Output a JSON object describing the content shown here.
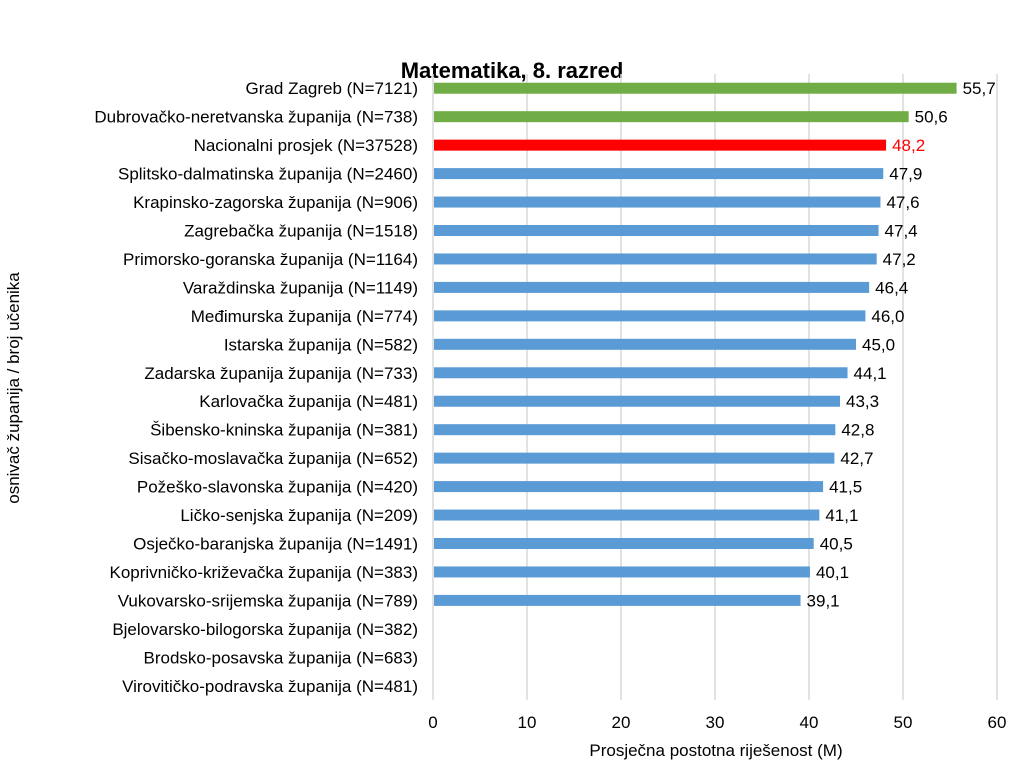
{
  "chart_data": {
    "type": "bar",
    "orientation": "horizontal",
    "title": "Matematika, 8. razred",
    "xlabel": "Prosječna postotna riješenost (M)",
    "ylabel": "osnivač županija / broj učenika",
    "xlim": [
      0,
      60
    ],
    "xticks": [
      0,
      10,
      20,
      30,
      40,
      50,
      60
    ],
    "xtick_labels": [
      "0",
      "10",
      "20",
      "30",
      "40",
      "50",
      "60"
    ],
    "grid": "vertical",
    "colors": {
      "highlight": "#70ad47",
      "national": "#ff0000",
      "default": "#5b9bd5"
    },
    "categories": [
      "Grad Zagreb (N=7121)",
      "Dubrovačko-neretvanska županija (N=738)",
      "Nacionalni prosjek (N=37528)",
      "Splitsko-dalmatinska županija (N=2460)",
      "Krapinsko-zagorska županija (N=906)",
      "Zagrebačka županija (N=1518)",
      "Primorsko-goranska županija (N=1164)",
      "Varaždinska županija (N=1149)",
      "Međimurska županija (N=774)",
      "Istarska županija (N=582)",
      "Zadarska županija županija (N=733)",
      "Karlovačka županija (N=481)",
      "Šibensko-kninska županija (N=381)",
      "Sisačko-moslavačka županija (N=652)",
      "Požeško-slavonska županija (N=420)",
      "Ličko-senjska županija (N=209)",
      "Osječko-baranjska županija (N=1491)",
      "Koprivničko-križevačka županija (N=383)",
      "Vukovarsko-srijemska županija (N=789)",
      "Bjelovarsko-bilogorska županija (N=382)",
      "Brodsko-posavska županija (N=683)",
      "Virovitičko-podravska županija (N=481)"
    ],
    "values": [
      55.7,
      50.6,
      48.2,
      47.9,
      47.6,
      47.4,
      47.2,
      46.4,
      46.0,
      45.0,
      44.1,
      43.3,
      42.8,
      42.7,
      41.5,
      41.1,
      40.5,
      40.1,
      39.1,
      null,
      null,
      null
    ],
    "value_labels": [
      "55,7",
      "50,6",
      "48,2",
      "47,9",
      "47,6",
      "47,4",
      "47,2",
      "46,4",
      "46,0",
      "45,0",
      "44,1",
      "43,3",
      "42,8",
      "42,7",
      "41,5",
      "41,1",
      "40,5",
      "40,1",
      "39,1",
      "",
      "",
      ""
    ],
    "bar_color_keys": [
      "highlight",
      "highlight",
      "national",
      "default",
      "default",
      "default",
      "default",
      "default",
      "default",
      "default",
      "default",
      "default",
      "default",
      "default",
      "default",
      "default",
      "default",
      "default",
      "default",
      "default",
      "default",
      "default"
    ]
  }
}
